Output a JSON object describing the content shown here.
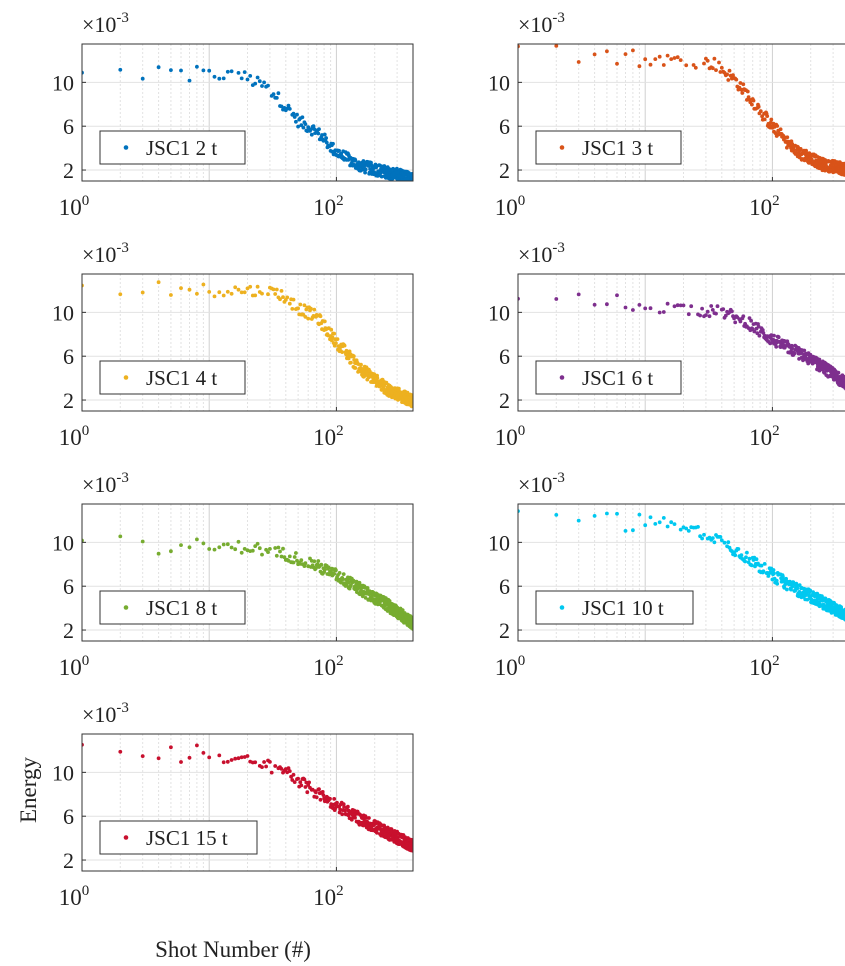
{
  "figure": {
    "ylabel": "Energy",
    "xlabel": "Shot Number (#)",
    "multiplier_base": "×10",
    "multiplier_exp": "-3",
    "yticks": [
      "2",
      "6",
      "10"
    ],
    "xtick_base": "10",
    "xtick_exps": [
      "0",
      "2"
    ]
  },
  "chart_data": [
    {
      "type": "scatter",
      "legend": "JSC1 2 t",
      "color": "#0072BD",
      "xscale": "log",
      "xlim": [
        1,
        400
      ],
      "ylim": [
        1,
        13.5
      ],
      "y_multiplier": "1e-3",
      "grid": true,
      "legend_position": "bottom-left",
      "series": [
        {
          "name": "JSC1 2 t",
          "profile": [
            [
              1,
              10.6
            ],
            [
              2,
              11.5
            ],
            [
              3,
              10.1
            ],
            [
              5,
              10.8
            ],
            [
              10,
              10.7
            ],
            [
              18,
              10.6
            ],
            [
              30,
              9.4
            ],
            [
              50,
              6.5
            ],
            [
              70,
              5.5
            ],
            [
              100,
              3.6
            ],
            [
              150,
              2.4
            ],
            [
              250,
              1.8
            ],
            [
              400,
              1.2
            ]
          ]
        }
      ]
    },
    {
      "type": "scatter",
      "legend": "JSC1 3 t",
      "color": "#D95319",
      "xscale": "log",
      "xlim": [
        1,
        400
      ],
      "ylim": [
        1,
        13.5
      ],
      "y_multiplier": "1e-3",
      "grid": true,
      "legend_position": "bottom-left",
      "series": [
        {
          "name": "JSC1 3 t",
          "profile": [
            [
              1,
              13.6
            ],
            [
              2,
              13.0
            ],
            [
              4,
              12.4
            ],
            [
              8,
              12.2
            ],
            [
              20,
              12.0
            ],
            [
              35,
              11.7
            ],
            [
              50,
              10.3
            ],
            [
              70,
              8.3
            ],
            [
              100,
              6.0
            ],
            [
              150,
              3.8
            ],
            [
              250,
              2.5
            ],
            [
              400,
              2.0
            ]
          ]
        }
      ]
    },
    {
      "type": "scatter",
      "legend": "JSC1 4 t",
      "color": "#EDB120",
      "xscale": "log",
      "xlim": [
        1,
        400
      ],
      "ylim": [
        1,
        13.5
      ],
      "y_multiplier": "1e-3",
      "grid": true,
      "legend_position": "bottom-left",
      "series": [
        {
          "name": "JSC1 4 t",
          "profile": [
            [
              1,
              12.5
            ],
            [
              2,
              12.1
            ],
            [
              4,
              12.0
            ],
            [
              10,
              12.0
            ],
            [
              20,
              12.0
            ],
            [
              35,
              11.8
            ],
            [
              50,
              10.4
            ],
            [
              70,
              9.6
            ],
            [
              100,
              7.3
            ],
            [
              150,
              5.0
            ],
            [
              250,
              3.0
            ],
            [
              400,
              1.9
            ]
          ]
        }
      ]
    },
    {
      "type": "scatter",
      "legend": "JSC1 6 t",
      "color": "#7E2F8E",
      "xscale": "log",
      "xlim": [
        1,
        400
      ],
      "ylim": [
        1,
        13.5
      ],
      "y_multiplier": "1e-3",
      "grid": true,
      "legend_position": "bottom-left",
      "series": [
        {
          "name": "JSC1 6 t",
          "profile": [
            [
              1,
              11.6
            ],
            [
              2,
              11.0
            ],
            [
              5,
              10.9
            ],
            [
              10,
              10.6
            ],
            [
              20,
              10.3
            ],
            [
              40,
              10.0
            ],
            [
              60,
              9.3
            ],
            [
              100,
              7.5
            ],
            [
              150,
              6.5
            ],
            [
              250,
              5.0
            ],
            [
              400,
              3.3
            ]
          ]
        }
      ]
    },
    {
      "type": "scatter",
      "legend": "JSC1 8 t",
      "color": "#77AC30",
      "xscale": "log",
      "xlim": [
        1,
        400
      ],
      "ylim": [
        1,
        13.5
      ],
      "y_multiplier": "1e-3",
      "grid": true,
      "legend_position": "bottom-left",
      "series": [
        {
          "name": "JSC1 8 t",
          "profile": [
            [
              1,
              10.2
            ],
            [
              2,
              10.7
            ],
            [
              4,
              9.2
            ],
            [
              10,
              9.5
            ],
            [
              20,
              9.6
            ],
            [
              40,
              8.9
            ],
            [
              60,
              8.2
            ],
            [
              100,
              7.0
            ],
            [
              150,
              5.8
            ],
            [
              250,
              4.3
            ],
            [
              400,
              2.6
            ]
          ]
        }
      ]
    },
    {
      "type": "scatter",
      "legend": "JSC1 10 t",
      "color": "#00C8F0",
      "xscale": "log",
      "xlim": [
        1,
        400
      ],
      "ylim": [
        1,
        13.5
      ],
      "y_multiplier": "1e-3",
      "grid": true,
      "legend_position": "bottom-left",
      "series": [
        {
          "name": "JSC1 10 t",
          "profile": [
            [
              1,
              13.0
            ],
            [
              2,
              12.5
            ],
            [
              4,
              11.8
            ],
            [
              10,
              11.9
            ],
            [
              20,
              11.5
            ],
            [
              35,
              10.5
            ],
            [
              60,
              8.8
            ],
            [
              100,
              7.0
            ],
            [
              150,
              5.8
            ],
            [
              250,
              4.5
            ],
            [
              400,
              3.3
            ]
          ]
        }
      ]
    },
    {
      "type": "scatter",
      "legend": "JSC1 15 t",
      "color": "#C8102E",
      "xscale": "log",
      "xlim": [
        1,
        400
      ],
      "ylim": [
        1,
        13.5
      ],
      "y_multiplier": "1e-3",
      "grid": true,
      "legend_position": "bottom-left",
      "series": [
        {
          "name": "JSC1 15 t",
          "profile": [
            [
              1,
              12.6
            ],
            [
              2,
              12.0
            ],
            [
              5,
              11.7
            ],
            [
              10,
              11.6
            ],
            [
              20,
              11.0
            ],
            [
              40,
              10.2
            ],
            [
              60,
              8.6
            ],
            [
              100,
              7.0
            ],
            [
              150,
              5.8
            ],
            [
              250,
              4.5
            ],
            [
              400,
              3.3
            ]
          ]
        }
      ]
    }
  ]
}
